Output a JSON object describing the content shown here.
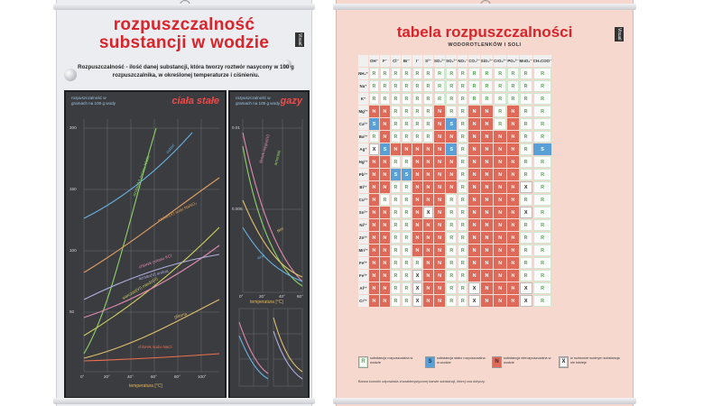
{
  "left_poster": {
    "title_line1": "rozpuszczalność",
    "title_line2": "substancji w wodzie",
    "badge": "Visual",
    "definition": "Rozpuszczalność - ilość danej substancji, która tworzy roztwór nasycony w 100 g rozpuszczalnika, w określonej temperaturze i ciśnieniu.",
    "solids": {
      "title": "ciała stałe",
      "ylabel": "rozpuszczalność w gramach na 100 g wody",
      "xlabel": "temperatura [°C]",
      "yticks": [
        "200",
        "150",
        "100",
        "50"
      ],
      "xticks": [
        "0°",
        "20°",
        "40°",
        "60°",
        "80°",
        "100°"
      ],
      "curves": [
        {
          "label": "azotan(V) potasu KNO₃",
          "color": "#8fd06a"
        },
        {
          "label": "cukier",
          "color": "#6ab0e0"
        },
        {
          "label": "azotan(V) sodu NaNO₃",
          "color": "#e0a060"
        },
        {
          "label": "siarczan(VI) miedzi(II)",
          "color": "#d0d060"
        },
        {
          "label": "chlorek potasu KCl",
          "color": "#e08ab0"
        },
        {
          "label": "azotan(V) srebra",
          "color": "#b0b0e0"
        },
        {
          "label": "glicyna",
          "color": "#e0c070"
        },
        {
          "label": "chlorek sodu NaCl",
          "color": "#f07050"
        }
      ]
    },
    "gases": {
      "title": "gazy",
      "ylabel": "rozpuszczalność w gramach na 100 g wody",
      "xlabel": "temperatura [°C]",
      "xticks": [
        "0°",
        "20°",
        "40°",
        "60°"
      ],
      "yticks": [
        "0.01",
        "0.005"
      ],
      "curves": [
        {
          "label": "tlenek węgla(IV)",
          "color": "#e08ab0"
        },
        {
          "label": "amoniak",
          "color": "#8fd06a"
        },
        {
          "label": "tlen",
          "color": "#e0c070"
        },
        {
          "label": "azot",
          "color": "#6ab0e0"
        }
      ]
    }
  },
  "right_poster": {
    "title": "tabela rozpuszczalności",
    "subtitle": "WODOROTLENKÓW I SOLI",
    "badge": "Visual",
    "anions": [
      "OH⁻",
      "F⁻",
      "Cl⁻",
      "Br⁻",
      "I⁻",
      "S²⁻",
      "SO₃²⁻",
      "SO₄²⁻",
      "NO₃⁻",
      "CO₃²⁻",
      "SiO₃²⁻",
      "CrO₄²⁻",
      "PO₄³⁻",
      "MnO₄⁻",
      "CH₃COO⁻"
    ],
    "cations": [
      "NH₄⁺",
      "Na⁺",
      "K⁺",
      "Mg²⁺",
      "Ca²⁺",
      "Ba²⁺",
      "Ag⁺",
      "Hg²⁺",
      "Pb²⁺",
      "Bi³⁺",
      "Cu²⁺",
      "Sn²⁺",
      "Ni²⁺",
      "Zn²⁺",
      "Mn²⁺",
      "Fe²⁺",
      "Fe³⁺",
      "Al³⁺",
      "Cr³⁺"
    ],
    "rows": [
      "RRRRRRRRRRRRRRR",
      "RRRRRRRRRRRRRRR",
      "RRRRRRRRRRRRRRR",
      "NNRRRRNRRNNRNRR",
      "SNRRRRNSRNNRNRR",
      "RNRRRRNNRNNNNRR",
      "XSNNNNNSRNNNNRS",
      "NNRRNNNNRNNNNRR",
      "NNSSNNNNRNNNNRR",
      "NNRRNNNNRNNNNXR",
      "NRRRNNNRRNNNNRR",
      "NNRRNXNRRNNNNXR",
      "NNRRNNNRRNNNNRR",
      "NNRRNNNRRNNNNRR",
      "NNRRNNNRRNNNNRR",
      "NNRRRNNRRNNNNRR",
      "NNRRXNNRRNNNNRR",
      "NNRRXNNRRXNNNXR",
      "NNRRXNNRRXNNNXR"
    ],
    "legend": [
      {
        "symbol": "R",
        "text": "substancja rozpuszczalna w wodzie"
      },
      {
        "symbol": "S",
        "text": "substancja słabo rozpuszczalna w wodzie"
      },
      {
        "symbol": "N",
        "text": "substancja nierozpuszczalna w wodzie"
      },
      {
        "symbol": "X",
        "text": "w roztworze wodnym substancja nie istnieje"
      }
    ],
    "footer": "Barwa komórki odpowiada charakterystycznej barwie substancji, której ona dotyczy."
  }
}
